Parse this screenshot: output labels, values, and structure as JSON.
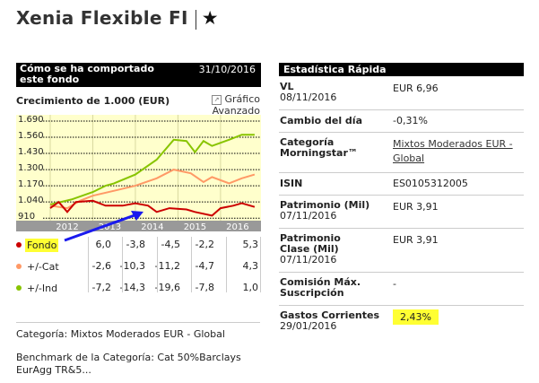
{
  "page": {
    "title": "Xenia Flexible FI",
    "star": "★"
  },
  "performance": {
    "header": "Cómo se ha comportado este fondo",
    "date": "31/10/2016",
    "growth_label": "Crecimiento de 1.000 (EUR)",
    "advanced_chart": "Gráfico Avanzado"
  },
  "chart_data": {
    "type": "line",
    "title": "Crecimiento de 1.000 (EUR)",
    "yticks": [
      "1.690",
      "1.560",
      "1.430",
      "1.300",
      "1.170",
      "1.040",
      "910"
    ],
    "ytick_values": [
      1690,
      1560,
      1430,
      1300,
      1170,
      1040,
      910
    ],
    "ylim": [
      890,
      1740
    ],
    "xlim": [
      2011.2,
      2016.95
    ],
    "xticks": [
      "2012",
      "2013",
      "2014",
      "2015",
      "2016"
    ],
    "series": [
      {
        "name": "+/-Ind",
        "color": "#88c400",
        "x": [
          2012.0,
          2012.5,
          2013.0,
          2013.3,
          2013.5,
          2014.0,
          2014.5,
          2014.9,
          2015.2,
          2015.4,
          2015.6,
          2015.8,
          2016.2,
          2016.5,
          2016.8
        ],
        "y": [
          1020,
          1060,
          1120,
          1170,
          1190,
          1260,
          1380,
          1540,
          1530,
          1440,
          1530,
          1490,
          1540,
          1580,
          1580
        ]
      },
      {
        "name": "+/-Cat",
        "color": "#ff9966",
        "x": [
          2012.0,
          2012.4,
          2012.7,
          2013.0,
          2013.5,
          2014.0,
          2014.5,
          2014.9,
          2015.3,
          2015.6,
          2015.8,
          2016.2,
          2016.5,
          2016.8
        ],
        "y": [
          1010,
          990,
          1050,
          1090,
          1130,
          1170,
          1230,
          1300,
          1270,
          1200,
          1240,
          1190,
          1230,
          1260
        ]
      },
      {
        "name": "Fondo",
        "color": "#cc0000",
        "x": [
          2012.0,
          2012.2,
          2012.4,
          2012.6,
          2013.0,
          2013.3,
          2013.7,
          2014.0,
          2014.3,
          2014.5,
          2014.8,
          2015.2,
          2015.4,
          2015.8,
          2016.0,
          2016.3,
          2016.5,
          2016.8
        ],
        "y": [
          990,
          1040,
          960,
          1040,
          1050,
          1010,
          1010,
          1030,
          1010,
          960,
          990,
          980,
          960,
          930,
          990,
          1010,
          1030,
          1000
        ]
      }
    ]
  },
  "returns": {
    "rows": [
      {
        "label": "Fondo",
        "color": "#cc0000",
        "values": [
          "6,0",
          "-3,8",
          "-4,5",
          "-2,2",
          "5,3"
        ]
      },
      {
        "label": "+/-Cat",
        "color": "#ff9966",
        "values": [
          "-2,6",
          "-10,3",
          "-11,2",
          "-4,7",
          "4,3"
        ]
      },
      {
        "label": "+/-Ind",
        "color": "#88c400",
        "values": [
          "-7,2",
          "-14,3",
          "-19,6",
          "-7,8",
          "1,0"
        ]
      }
    ]
  },
  "footer": {
    "category": "Categoría: Mixtos Moderados EUR - Global",
    "benchmark": "Benchmark de la Categoría: Cat 50%Barclays EurAgg TR&5..."
  },
  "stats": {
    "header": "Estadística Rápida",
    "rows": [
      {
        "key": "VL",
        "sub": "08/11/2016",
        "value": "EUR 6,96"
      },
      {
        "key": "Cambio del día",
        "sub": "",
        "value": "-0,31%"
      },
      {
        "key": "Categoría Morningstar™",
        "sub": "",
        "value": "Mixtos Moderados EUR - Global"
      },
      {
        "key": "ISIN",
        "sub": "",
        "value": "ES0105312005"
      },
      {
        "key": "Patrimonio (Mil)",
        "sub": "07/11/2016",
        "value": "EUR 3,91"
      },
      {
        "key": "Patrimonio Clase (Mil)",
        "sub": "07/11/2016",
        "value": "EUR 3,91"
      },
      {
        "key": "Comisión Máx. Suscripción",
        "sub": "",
        "value": "-"
      },
      {
        "key": "Gastos Corrientes",
        "sub": "29/01/2016",
        "value": "2,43%"
      }
    ]
  }
}
